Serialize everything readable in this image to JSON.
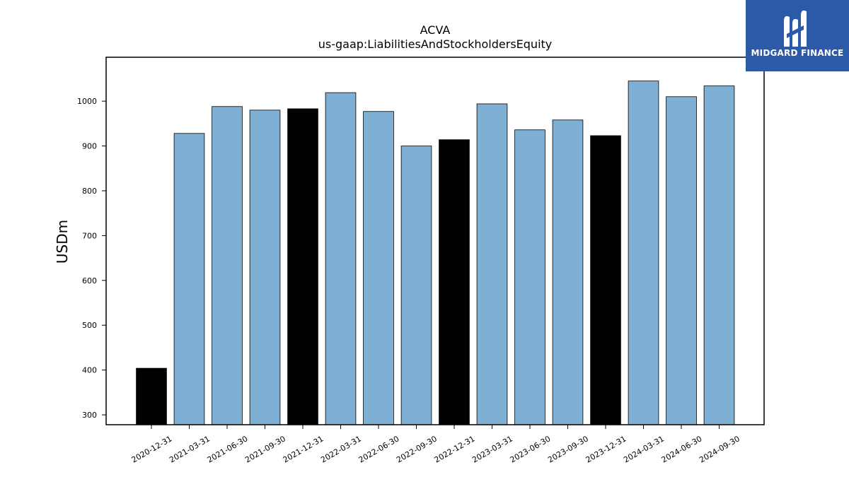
{
  "chart_data": {
    "type": "bar",
    "title": "ACVA",
    "subtitle": "us-gaap:LiabilitiesAndStockholdersEquity",
    "xlabel": "",
    "ylabel": "USDm",
    "ylim": [
      278,
      1098
    ],
    "yticks": [
      300,
      400,
      500,
      600,
      700,
      800,
      900,
      1000
    ],
    "grid": false,
    "categories": [
      "2020-12-31",
      "2021-03-31",
      "2021-06-30",
      "2021-09-30",
      "2021-12-31",
      "2022-03-31",
      "2022-06-30",
      "2022-09-30",
      "2022-12-31",
      "2023-03-31",
      "2023-06-30",
      "2023-09-30",
      "2023-12-31",
      "2024-03-31",
      "2024-06-30",
      "2024-09-30"
    ],
    "values": [
      404,
      928,
      988,
      980,
      983,
      1019,
      977,
      900,
      914,
      994,
      936,
      958,
      923,
      1045,
      1010,
      1034
    ],
    "fiscal_year_end": [
      true,
      false,
      false,
      false,
      true,
      false,
      false,
      false,
      true,
      false,
      false,
      false,
      true,
      false,
      false,
      false
    ],
    "colors": {
      "quarter": "#7fb0d4",
      "year_end": "#000000",
      "edge": "#000000"
    }
  },
  "branding": {
    "logo_text": "MIDGARD FINANCE",
    "logo_bg": "#2d5aa8"
  }
}
